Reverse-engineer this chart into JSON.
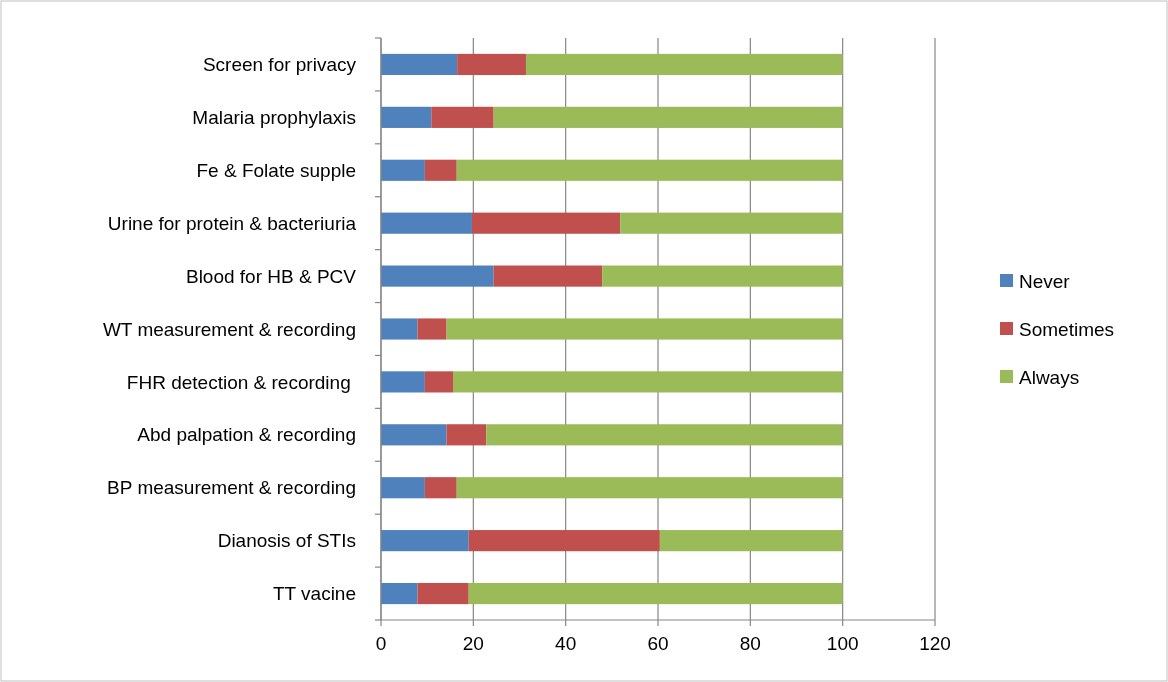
{
  "chart_data": {
    "type": "bar",
    "orientation": "horizontal",
    "stacked": true,
    "categories": [
      "Screen for privacy",
      "Malaria prophylaxis",
      "Fe & Folate supple",
      "Urine for protein & bacteriuria",
      "Blood for HB & PCV",
      "WT measurement & recording",
      "FHR detection & recording ",
      "Abd palpation & recording",
      "BP measurement & recording",
      "Dianosis of STIs",
      "TT vacine"
    ],
    "series": [
      {
        "name": "Never",
        "color": "#4f81bd",
        "values": [
          16.5,
          10.9,
          9.5,
          19.7,
          24.4,
          7.9,
          9.5,
          14.2,
          9.5,
          19.0,
          7.9
        ]
      },
      {
        "name": "Sometimes",
        "color": "#c0504d",
        "values": [
          14.9,
          13.5,
          6.9,
          32.1,
          23.5,
          6.3,
          6.1,
          8.6,
          6.9,
          41.4,
          11.1
        ]
      },
      {
        "name": "Always",
        "color": "#9bbb59",
        "values": [
          68.6,
          75.6,
          83.6,
          48.2,
          52.1,
          85.8,
          84.4,
          77.2,
          83.6,
          39.6,
          81.0
        ]
      }
    ],
    "xlim": [
      0,
      120
    ],
    "xticks": [
      0,
      20,
      40,
      60,
      80,
      100,
      120
    ],
    "grid": "x",
    "legend": "right"
  }
}
